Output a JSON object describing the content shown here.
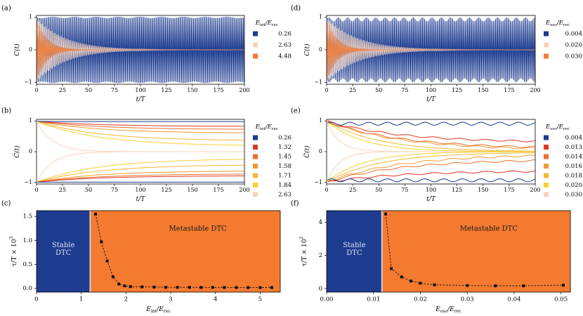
{
  "colors": {
    "navy": "#1c3a8e",
    "orange": "#f47a30",
    "peach": "#f7d3bd",
    "red": "#e03526",
    "darkorange": "#e8702c",
    "amber": "#f09a36",
    "gold": "#f3b83a",
    "yellow": "#f7d034",
    "marker": "#111111",
    "divider": "#cfcfcf"
  },
  "chart_data": [
    {
      "id": "a",
      "panel_label": "(a)",
      "type": "line",
      "xlabel": "t/T",
      "ylabel": "C(t)",
      "xlim": [
        0,
        200
      ],
      "ylim": [
        -1.05,
        1.05
      ],
      "xticks": [
        "0",
        "25",
        "50",
        "75",
        "100",
        "125",
        "150",
        "175",
        "200"
      ],
      "yticks": [
        "1",
        "0",
        "−1"
      ],
      "legend_title": "E_int/E_rec",
      "series": [
        {
          "name": "0.26",
          "color": "navy",
          "model": "stable",
          "decay": 0
        },
        {
          "name": "2.63",
          "color": "peach",
          "model": "decay",
          "decay": 28
        },
        {
          "name": "4.48",
          "color": "orange",
          "model": "decay",
          "decay": 10
        }
      ]
    },
    {
      "id": "d",
      "panel_label": "(d)",
      "type": "line",
      "xlabel": "t/T",
      "ylabel": "C(t)",
      "xlim": [
        0,
        200
      ],
      "ylim": [
        -1.05,
        1.05
      ],
      "xticks": [
        "0",
        "25",
        "50",
        "75",
        "100",
        "125",
        "150",
        "175",
        "200"
      ],
      "yticks": [
        "1",
        "0",
        "−1"
      ],
      "legend_title": "E_osc/E_rec",
      "series": [
        {
          "name": "0.004",
          "color": "navy",
          "model": "stable",
          "decay": 0
        },
        {
          "name": "0.020",
          "color": "peach",
          "model": "decay",
          "decay": 30
        },
        {
          "name": "0.030",
          "color": "orange",
          "model": "decay",
          "decay": 10
        }
      ]
    },
    {
      "id": "b",
      "panel_label": "(b)",
      "type": "line",
      "xlabel": "t/T",
      "ylabel": "C̅(t)",
      "xlim": [
        0,
        200
      ],
      "ylim": [
        -1.05,
        1.05
      ],
      "xticks": [
        "0",
        "25",
        "50",
        "75",
        "100",
        "125",
        "150",
        "175",
        "200"
      ],
      "yticks": [
        "1",
        "0",
        "−1"
      ],
      "legend_title": "E_int/E_rec",
      "series": [
        {
          "name": "0.26",
          "color": "navy",
          "upper": 0.98,
          "lower": -0.99,
          "tau": 5
        },
        {
          "name": "1.32",
          "color": "red",
          "upper": 0.82,
          "lower": -0.78,
          "tau": 60
        },
        {
          "name": "1.45",
          "color": "darkorange",
          "upper": 0.72,
          "lower": -0.72,
          "tau": 60
        },
        {
          "name": "1.58",
          "color": "amber",
          "upper": 0.6,
          "lower": -0.62,
          "tau": 60
        },
        {
          "name": "1.71",
          "color": "gold",
          "upper": 0.35,
          "lower": -0.42,
          "tau": 60
        },
        {
          "name": "1.84",
          "color": "yellow",
          "upper": 0.18,
          "lower": -0.22,
          "tau": 60
        },
        {
          "name": "2.63",
          "color": "peach",
          "upper": 0.0,
          "lower": 0.0,
          "tau": 15
        }
      ]
    },
    {
      "id": "e",
      "panel_label": "(e)",
      "type": "line",
      "xlabel": "t/T",
      "ylabel": "C̅(t)",
      "xlim": [
        0,
        200
      ],
      "ylim": [
        -1.05,
        1.05
      ],
      "xticks": [
        "0",
        "25",
        "50",
        "75",
        "100",
        "125",
        "150",
        "175",
        "200"
      ],
      "yticks": [
        "1",
        "0",
        "−1"
      ],
      "legend_title": "E_osc/E_rec",
      "series": [
        {
          "name": "0.004",
          "color": "navy",
          "upper": 0.92,
          "lower": -0.95,
          "tau": 5
        },
        {
          "name": "0.013",
          "color": "red",
          "upper": 0.3,
          "lower": -0.62,
          "tau": 70
        },
        {
          "name": "0.014",
          "color": "darkorange",
          "upper": 0.1,
          "lower": -0.25,
          "tau": 70
        },
        {
          "name": "0.016",
          "color": "amber",
          "upper": 0.05,
          "lower": -0.08,
          "tau": 70
        },
        {
          "name": "0.018",
          "color": "gold",
          "upper": 0.0,
          "lower": -0.02,
          "tau": 50
        },
        {
          "name": "0.020",
          "color": "yellow",
          "upper": 0.0,
          "lower": 0.0,
          "tau": 35
        },
        {
          "name": "0.030",
          "color": "peach",
          "upper": 0.0,
          "lower": 0.0,
          "tau": 12
        }
      ]
    },
    {
      "id": "c",
      "panel_label": "(c)",
      "type": "scatter",
      "xlabel": "E_int/E_rec",
      "ylabel": "τ/T × 10^3",
      "xlim": [
        0,
        5.45
      ],
      "ylim": [
        -0.08,
        1.62
      ],
      "xticks": [
        0,
        1,
        2,
        3,
        4,
        5
      ],
      "yticks": [
        0.0,
        0.5,
        1.0,
        1.5
      ],
      "ytick_labels": [
        "0.0",
        "0.5",
        "1.0",
        "1.5"
      ],
      "boundary": 1.2,
      "regions": {
        "stable": "Stable\nDTC",
        "metastable": "Metastable DTC"
      },
      "x": [
        1.32,
        1.45,
        1.58,
        1.71,
        1.84,
        1.97,
        2.1,
        2.36,
        2.63,
        2.89,
        3.15,
        3.42,
        3.68,
        3.94,
        4.2,
        4.47,
        4.73,
        5.0,
        5.26
      ],
      "y": [
        1.55,
        0.97,
        0.57,
        0.24,
        0.09,
        0.05,
        0.035,
        0.03,
        0.025,
        0.02,
        0.02,
        0.02,
        0.018,
        0.018,
        0.017,
        0.016,
        0.015,
        0.015,
        0.015
      ]
    },
    {
      "id": "f",
      "panel_label": "(f)",
      "type": "scatter",
      "xlabel": "E_osc/E_rec",
      "ylabel": "τ/T × 10^2",
      "xlim": [
        0,
        0.052
      ],
      "ylim": [
        -0.22,
        4.7
      ],
      "xticks": [
        0.0,
        0.01,
        0.02,
        0.03,
        0.04,
        0.05
      ],
      "yticks": [
        0,
        2,
        4
      ],
      "xtick_labels": [
        "0.00",
        "0.01",
        "0.02",
        "0.03",
        "0.04",
        "0.05"
      ],
      "ytick_labels": [
        "0",
        "2",
        "4"
      ],
      "boundary": 0.0118,
      "regions": {
        "stable": "Stable\nDTC",
        "metastable": "Metastable DTC"
      },
      "x": [
        0.0126,
        0.0138,
        0.016,
        0.018,
        0.02,
        0.023,
        0.03,
        0.036,
        0.042,
        0.0505
      ],
      "y": [
        4.5,
        1.2,
        0.7,
        0.45,
        0.32,
        0.22,
        0.18,
        0.16,
        0.16,
        0.2
      ]
    }
  ]
}
